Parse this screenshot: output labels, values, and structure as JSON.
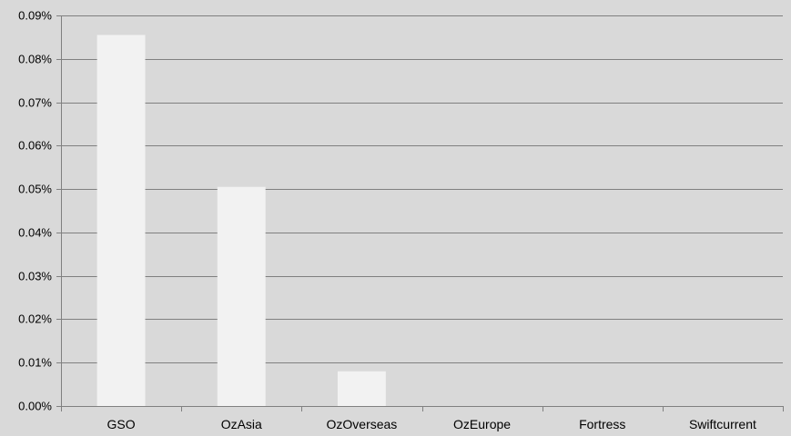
{
  "chart_data": {
    "type": "bar",
    "title": "",
    "xlabel": "",
    "ylabel": "",
    "categories": [
      "GSO",
      "OzAsia",
      "OzOverseas",
      "OzEurope",
      "Fortress",
      "Swiftcurrent"
    ],
    "values": [
      0.0855,
      0.0505,
      0.008,
      0,
      0,
      0
    ],
    "ylim": [
      0,
      0.09
    ],
    "yticks": [
      0,
      0.01,
      0.02,
      0.03,
      0.04,
      0.05,
      0.06,
      0.07,
      0.08,
      0.09
    ],
    "ytick_labels": [
      "0.00%",
      "0.01%",
      "0.02%",
      "0.03%",
      "0.04%",
      "0.05%",
      "0.06%",
      "0.07%",
      "0.08%",
      "0.09%"
    ],
    "grid": true,
    "legend": false,
    "colors": {
      "background": "#d9d9d9",
      "bar": "#f2f2f2",
      "gridline": "#808080",
      "axis": "#808080",
      "text": "#000000"
    }
  }
}
